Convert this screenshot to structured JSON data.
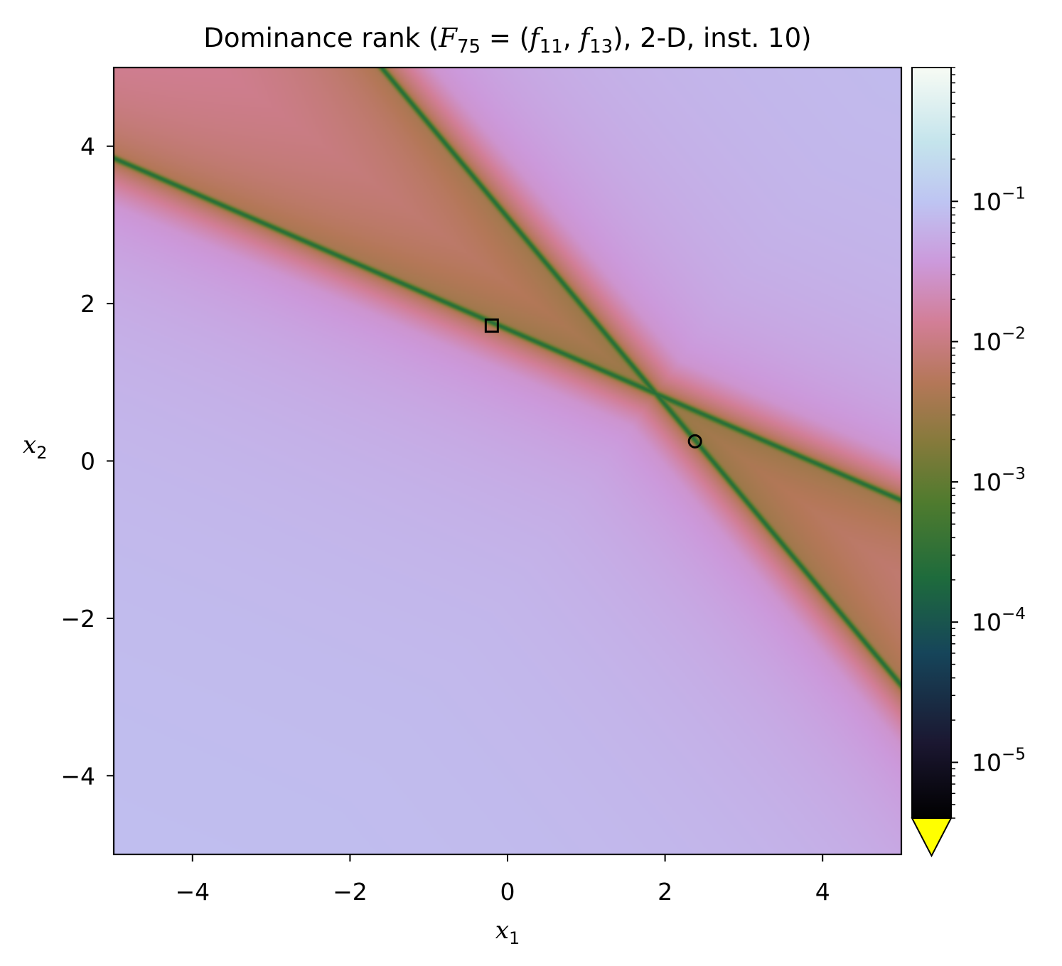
{
  "chart_data": {
    "type": "heatmap",
    "title": {
      "prefix": "Dominance rank (",
      "F": "F",
      "F_sub": "75",
      "eq": " = (",
      "f1": "f",
      "f1_sub": "11",
      "comma": ", ",
      "f2": "f",
      "f2_sub": "13",
      "suffix": "), 2-D, inst. 10)"
    },
    "xlabel": {
      "base": "x",
      "sub": "1"
    },
    "ylabel": {
      "base": "x",
      "sub": "2"
    },
    "xlim": [
      -5,
      5
    ],
    "ylim": [
      -5,
      5
    ],
    "xticks": [
      {
        "value": -4,
        "label": "−4"
      },
      {
        "value": -2,
        "label": "−2"
      },
      {
        "value": 0,
        "label": "0"
      },
      {
        "value": 2,
        "label": "2"
      },
      {
        "value": 4,
        "label": "4"
      }
    ],
    "yticks": [
      {
        "value": 4,
        "label": "4"
      },
      {
        "value": 2,
        "label": "2"
      },
      {
        "value": 0,
        "label": "0"
      },
      {
        "value": -2,
        "label": "−2"
      },
      {
        "value": -4,
        "label": "−4"
      }
    ],
    "colorbar": {
      "scale": "log",
      "range": [
        4e-06,
        0.9
      ],
      "extend": "min",
      "under_color": "#ffff00",
      "ticks": [
        {
          "value": 0.1,
          "base": "10",
          "exp": "−1"
        },
        {
          "value": 0.01,
          "base": "10",
          "exp": "−2"
        },
        {
          "value": 0.001,
          "base": "10",
          "exp": "−3"
        },
        {
          "value": 0.0001,
          "base": "10",
          "exp": "−4"
        },
        {
          "value": 1e-05,
          "base": "10",
          "exp": "−5"
        }
      ],
      "colormap": "cubehelix-like",
      "colormap_stops": [
        {
          "t": 0.0,
          "color": "#000000"
        },
        {
          "t": 0.1,
          "color": "#1b1731"
        },
        {
          "t": 0.22,
          "color": "#16455a"
        },
        {
          "t": 0.32,
          "color": "#1e6b3c"
        },
        {
          "t": 0.42,
          "color": "#4f7b2e"
        },
        {
          "t": 0.5,
          "color": "#857a3b"
        },
        {
          "t": 0.58,
          "color": "#b47758"
        },
        {
          "t": 0.66,
          "color": "#d27e96"
        },
        {
          "t": 0.74,
          "color": "#cc99db"
        },
        {
          "t": 0.82,
          "color": "#bec4f2"
        },
        {
          "t": 0.9,
          "color": "#c4e4ec"
        },
        {
          "t": 1.0,
          "color": "#f7fbf4"
        }
      ]
    },
    "pareto_lines": [
      {
        "name": "line-A",
        "p1": [
          -5,
          3.85
        ],
        "p2": [
          5,
          -0.5
        ]
      },
      {
        "name": "line-B",
        "p1": [
          -1.6,
          5.0
        ],
        "p2": [
          5,
          -2.85
        ]
      }
    ],
    "optima": [
      {
        "marker": "square",
        "x": -0.2,
        "y": 1.72
      },
      {
        "marker": "circle",
        "x": 2.38,
        "y": 0.25
      }
    ]
  }
}
